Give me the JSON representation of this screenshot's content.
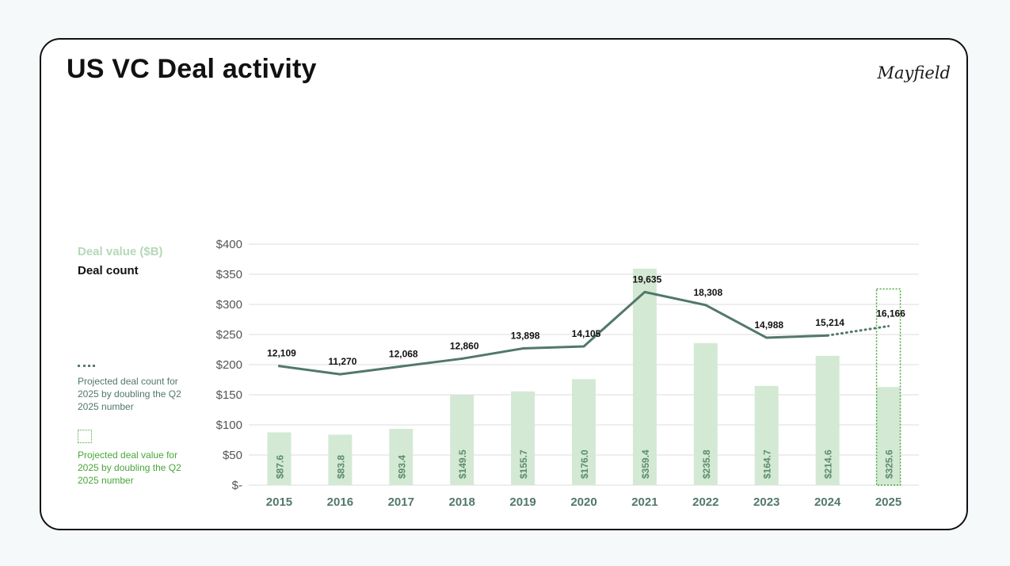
{
  "title": "US VC Deal activity",
  "logo_text": "Mayfield",
  "legend": {
    "deal_value": "Deal value ($B)",
    "deal_count": "Deal count",
    "note_projected_count": "Projected deal count for 2025 by doubling the Q2 2025 number",
    "note_projected_value": "Projected deal value for 2025 by doubling the Q2 2025 number"
  },
  "colors": {
    "bar": "#d3e9d4",
    "bar_label": "#5c8c6a",
    "line": "#52786a",
    "axis_text": "#555555",
    "year_text": "#52786a",
    "grid": "#dcdcdc",
    "legend_value": "#b5d8b8",
    "note_count": "#52786a",
    "note_value": "#4aa63a",
    "projection_box": "#4aa63a"
  },
  "chart_data": {
    "type": "bar",
    "categories": [
      "2015",
      "2016",
      "2017",
      "2018",
      "2019",
      "2020",
      "2021",
      "2022",
      "2023",
      "2024",
      "2025"
    ],
    "y_ticks": [
      "$400",
      "$350",
      "$300",
      "$250",
      "$200",
      "$150",
      "$100",
      "$50",
      "$-"
    ],
    "ylim": [
      0,
      400
    ],
    "series": [
      {
        "name": "Deal value ($B)",
        "type": "bar",
        "values": [
          87.6,
          83.8,
          93.4,
          149.5,
          155.7,
          176.0,
          359.4,
          235.8,
          164.7,
          214.6,
          325.6
        ],
        "labels": [
          "$87.6",
          "$83.8",
          "$93.4",
          "$149.5",
          "$155.7",
          "$176.0",
          "$359.4",
          "$235.8",
          "$164.7",
          "$214.6",
          "$325.6"
        ],
        "projected_from": "2025",
        "projected_solid_value": 162.8
      },
      {
        "name": "Deal count",
        "type": "line",
        "values": [
          12109,
          11270,
          12068,
          12860,
          13898,
          14105,
          19635,
          18308,
          14988,
          15214,
          16166
        ],
        "labels": [
          "12,109",
          "11,270",
          "12,068",
          "12,860",
          "13,898",
          "14,105",
          "19,635",
          "18,308",
          "14,988",
          "15,214",
          "16,166"
        ],
        "projected_from": "2024"
      }
    ],
    "grid": true
  }
}
